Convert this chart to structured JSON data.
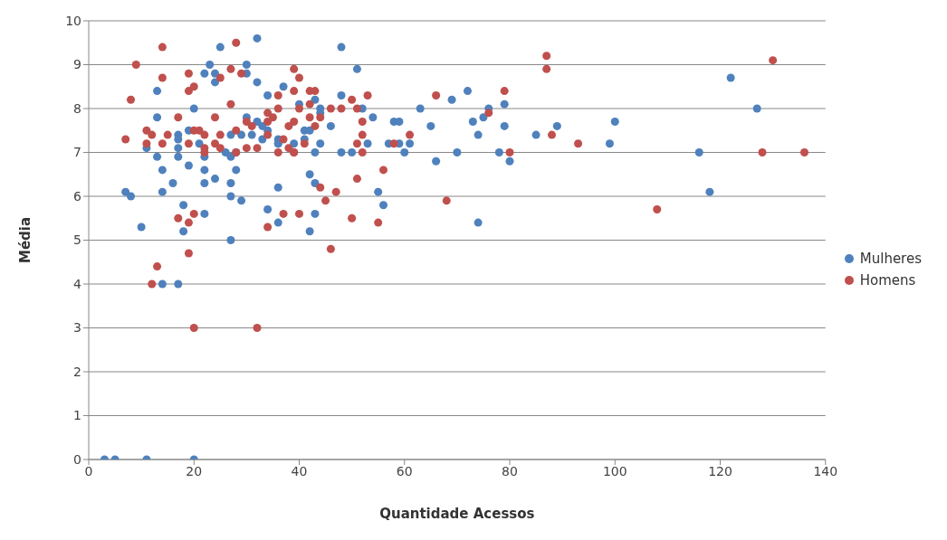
{
  "chart_data": {
    "type": "scatter",
    "xlabel": "Quantidade Acessos",
    "ylabel": "Média",
    "xlim": [
      0,
      140
    ],
    "xticks": [
      0,
      20,
      40,
      60,
      80,
      100,
      120,
      140
    ],
    "ylim": [
      0,
      10
    ],
    "yticks": [
      0,
      1,
      2,
      3,
      4,
      5,
      6,
      7,
      8,
      9,
      10
    ],
    "grid": "y",
    "legend": "right",
    "marker": "circle",
    "series": [
      {
        "name": "Mulheres",
        "color": "#4f81bd",
        "x": [
          3,
          5,
          11,
          20,
          14,
          17,
          32,
          25,
          23,
          30,
          22,
          24,
          30,
          24,
          32,
          13,
          20,
          13,
          30,
          32,
          17,
          19,
          27,
          29,
          31,
          11,
          13,
          17,
          17,
          21,
          22,
          26,
          27,
          28,
          17,
          14,
          19,
          22,
          28,
          16,
          22,
          24,
          27,
          7,
          8,
          14,
          27,
          29,
          18,
          22,
          10,
          18,
          27,
          48,
          51,
          37,
          34,
          43,
          48,
          40,
          44,
          52,
          63,
          44,
          54,
          58,
          59,
          65,
          33,
          34,
          41,
          42,
          46,
          33,
          36,
          36,
          36,
          39,
          41,
          44,
          53,
          57,
          59,
          61,
          60,
          43,
          48,
          50,
          42,
          43,
          36,
          55,
          56,
          34,
          43,
          36,
          42,
          66,
          69,
          70,
          72,
          73,
          74,
          75,
          76,
          74,
          78,
          79,
          79,
          80,
          85,
          89,
          99,
          100,
          116,
          118,
          122,
          127
        ],
        "values": [
          0,
          0,
          0,
          0,
          4,
          4,
          9.6,
          9.4,
          9,
          9,
          8.8,
          8.8,
          8.8,
          8.6,
          8.6,
          8.4,
          8,
          7.8,
          7.8,
          7.7,
          7.4,
          7.5,
          7.4,
          7.4,
          7.4,
          7.1,
          6.9,
          7.3,
          7.1,
          7.2,
          6.9,
          7,
          6.9,
          7,
          6.9,
          6.6,
          6.7,
          6.6,
          6.6,
          6.3,
          6.3,
          6.4,
          6.3,
          6.1,
          6,
          6.1,
          6,
          5.9,
          5.8,
          5.6,
          5.3,
          5.2,
          5,
          9.4,
          8.9,
          8.5,
          8.3,
          8.2,
          8.3,
          8.1,
          8,
          8,
          8,
          7.9,
          7.8,
          7.7,
          7.7,
          7.6,
          7.6,
          7.5,
          7.5,
          7.5,
          7.6,
          7.3,
          7.3,
          7.2,
          7.2,
          7.2,
          7.3,
          7.2,
          7.2,
          7.2,
          7.2,
          7.2,
          7,
          7,
          7,
          7,
          6.5,
          6.3,
          6.2,
          6.1,
          5.8,
          5.7,
          5.6,
          5.4,
          5.2,
          6.8,
          8.2,
          7,
          8.4,
          7.7,
          7.4,
          7.8,
          8,
          5.4,
          7,
          8.1,
          7.6,
          6.8,
          7.4,
          7.6,
          7.2,
          7.7,
          7,
          6.1,
          8.7,
          8
        ]
      },
      {
        "name": "Homens",
        "color": "#c0504d",
        "x": [
          14,
          28,
          9,
          14,
          19,
          27,
          29,
          25,
          19,
          20,
          8,
          27,
          17,
          24,
          30,
          31,
          11,
          12,
          11,
          7,
          14,
          15,
          19,
          20,
          21,
          22,
          22,
          22,
          24,
          25,
          25,
          28,
          30,
          32,
          28,
          17,
          20,
          19,
          19,
          13,
          12,
          20,
          32,
          39,
          40,
          42,
          43,
          39,
          36,
          53,
          50,
          42,
          40,
          36,
          46,
          48,
          51,
          34,
          35,
          39,
          38,
          34,
          44,
          42,
          52,
          43,
          52,
          61,
          34,
          37,
          38,
          39,
          39,
          41,
          51,
          52,
          58,
          36,
          56,
          51,
          44,
          47,
          45,
          37,
          40,
          50,
          55,
          34,
          46,
          66,
          68,
          76,
          79,
          80,
          87,
          87,
          88,
          93,
          108,
          128,
          130,
          136
        ],
        "values": [
          9.4,
          9.5,
          9,
          8.7,
          8.8,
          8.9,
          8.8,
          8.7,
          8.4,
          8.5,
          8.2,
          8.1,
          7.8,
          7.8,
          7.7,
          7.6,
          7.5,
          7.4,
          7.2,
          7.3,
          7.2,
          7.4,
          7.2,
          7.5,
          7.5,
          7.4,
          7.1,
          7,
          7.2,
          7.1,
          7.4,
          7.5,
          7.1,
          7.1,
          7,
          5.5,
          5.6,
          5.4,
          4.7,
          4.4,
          4,
          3,
          3,
          8.9,
          8.7,
          8.4,
          8.4,
          8.4,
          8.3,
          8.3,
          8.2,
          8.1,
          8,
          8,
          8,
          8,
          8,
          7.9,
          7.8,
          7.7,
          7.6,
          7.7,
          7.8,
          7.8,
          7.7,
          7.6,
          7.4,
          7.4,
          7.4,
          7.3,
          7.1,
          7,
          7,
          7.2,
          7.2,
          7,
          7.2,
          7,
          6.6,
          6.4,
          6.2,
          6.1,
          5.9,
          5.6,
          5.6,
          5.5,
          5.4,
          5.3,
          4.8,
          8.3,
          5.9,
          7.9,
          8.4,
          7,
          9.2,
          8.9,
          7.4,
          7.2,
          5.7,
          7,
          9.1,
          7
        ]
      }
    ]
  }
}
